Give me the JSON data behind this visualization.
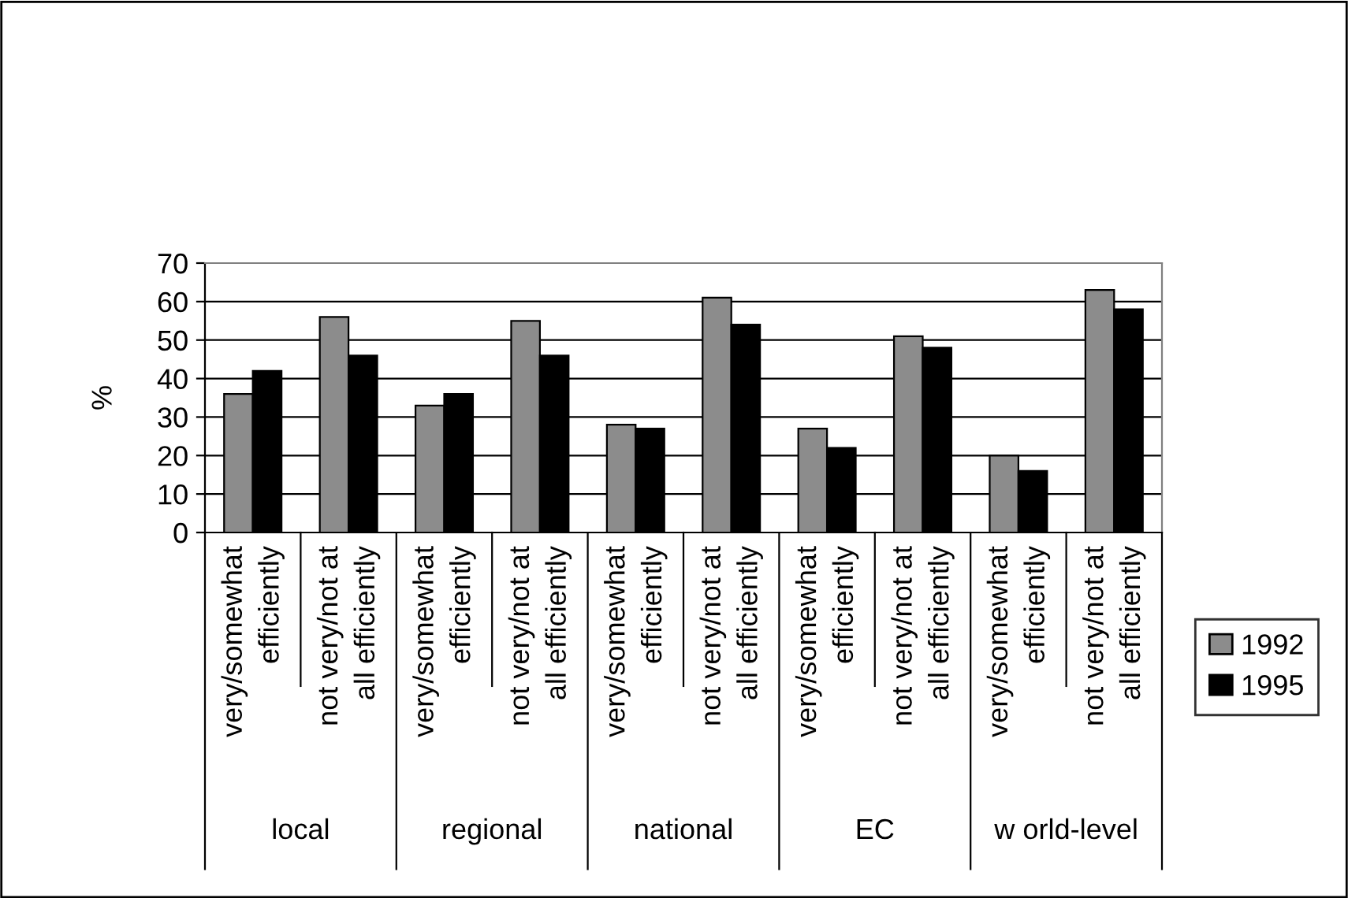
{
  "chart_data": {
    "type": "bar",
    "ylabel": "%",
    "categories": [
      "very/somewhat\nefficiently",
      "not very/not at\nall efficiently",
      "very/somewhat\nefficiently",
      "not very/not at\nall efficiently",
      "very/somewhat\nefficiently",
      "not very/not at\nall efficiently",
      "very/somewhat\nefficiently",
      "not very/not at\nall efficiently",
      "very/somewhat\nefficiently",
      "not very/not at\nall efficiently"
    ],
    "annotations": [
      "local",
      "regional",
      "national",
      "EC",
      "w orld-level"
    ],
    "series": [
      {
        "name": "1992",
        "color": "#8c8c8c",
        "values": [
          36,
          56,
          33,
          55,
          28,
          61,
          27,
          51,
          20,
          63
        ]
      },
      {
        "name": "1995",
        "color": "#000000",
        "values": [
          42,
          46,
          36,
          46,
          27,
          54,
          22,
          48,
          16,
          58
        ]
      }
    ],
    "ylim": [
      0,
      70
    ],
    "yticks": [
      0,
      10,
      20,
      30,
      40,
      50,
      60,
      70
    ],
    "grid": "y",
    "legend": "right"
  }
}
